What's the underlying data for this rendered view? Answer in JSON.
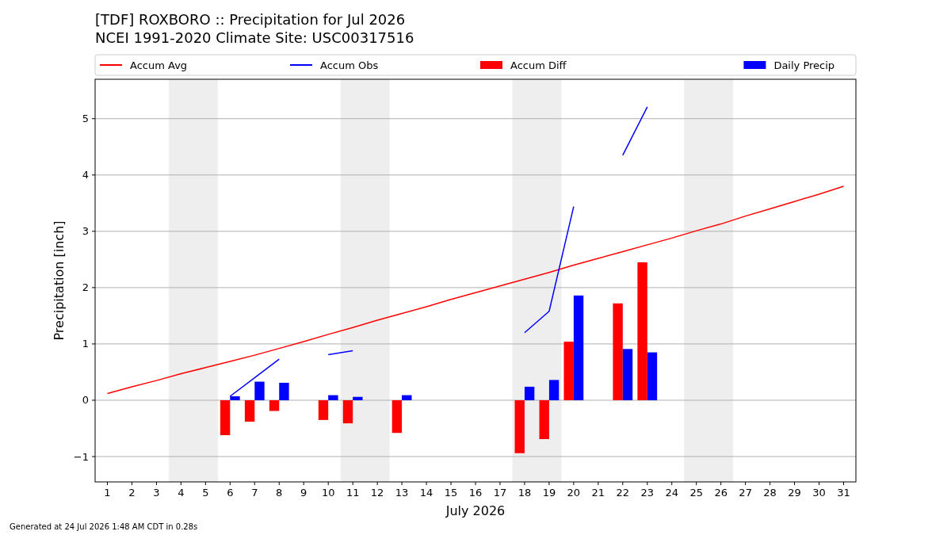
{
  "chart_data": {
    "type": "bar",
    "title": "[TDF] ROXBORO :: Precipitation for Jul 2026",
    "subtitle": "NCEI 1991-2020 Climate Site: USC00317516",
    "xlabel": "July 2026",
    "ylabel": "Precipitation [inch]",
    "x": [
      1,
      2,
      3,
      4,
      5,
      6,
      7,
      8,
      9,
      10,
      11,
      12,
      13,
      14,
      15,
      16,
      17,
      18,
      19,
      20,
      21,
      22,
      23,
      24,
      25,
      26,
      27,
      28,
      29,
      30,
      31
    ],
    "series": [
      {
        "name": "Accum Avg",
        "type": "line",
        "color": "#ff0000",
        "values": [
          0.12,
          0.24,
          0.35,
          0.47,
          0.58,
          0.69,
          0.8,
          0.92,
          1.04,
          1.17,
          1.29,
          1.42,
          1.54,
          1.66,
          1.79,
          1.91,
          2.03,
          2.15,
          2.27,
          2.4,
          2.52,
          2.64,
          2.76,
          2.88,
          3.01,
          3.13,
          3.27,
          3.4,
          3.53,
          3.66,
          3.8
        ]
      },
      {
        "name": "Accum Obs",
        "type": "line",
        "color": "#0000ff",
        "values": [
          null,
          null,
          null,
          null,
          null,
          0.07,
          0.4,
          0.73,
          null,
          0.81,
          0.88,
          null,
          null,
          null,
          null,
          null,
          null,
          1.2,
          1.58,
          3.44,
          null,
          4.35,
          5.21,
          null,
          null,
          null,
          null,
          null,
          null,
          null,
          null
        ]
      },
      {
        "name": "Accum Diff",
        "color": "#ff0000",
        "values": [
          null,
          null,
          null,
          null,
          null,
          -0.62,
          -0.38,
          -0.19,
          null,
          -0.35,
          -0.41,
          null,
          -0.58,
          null,
          null,
          null,
          null,
          -0.94,
          -0.69,
          1.04,
          null,
          1.72,
          2.45,
          null,
          null,
          null,
          null,
          null,
          null,
          null,
          null
        ]
      },
      {
        "name": "Daily Precip",
        "color": "#0000ff",
        "values": [
          null,
          null,
          null,
          null,
          null,
          0.07,
          0.33,
          0.31,
          null,
          0.09,
          0.06,
          null,
          0.09,
          null,
          null,
          null,
          null,
          0.24,
          0.36,
          1.86,
          null,
          0.91,
          0.85,
          null,
          null,
          null,
          null,
          null,
          null,
          null,
          null
        ]
      }
    ],
    "bands": [
      {
        "axis": "x",
        "from": 3.5,
        "to": 5.5,
        "color": "#eeeeee"
      },
      {
        "axis": "x",
        "from": 10.5,
        "to": 12.5,
        "color": "#eeeeee"
      },
      {
        "axis": "x",
        "from": 17.5,
        "to": 19.5,
        "color": "#eeeeee"
      },
      {
        "axis": "x",
        "from": 24.5,
        "to": 26.5,
        "color": "#eeeeee"
      }
    ],
    "xlim": [
      0.5,
      31.5
    ],
    "xticks": [
      1,
      2,
      3,
      4,
      5,
      6,
      7,
      8,
      9,
      10,
      11,
      12,
      13,
      14,
      15,
      16,
      17,
      18,
      19,
      20,
      21,
      22,
      23,
      24,
      25,
      26,
      27,
      28,
      29,
      30,
      31
    ],
    "ylim": [
      -1.45,
      5.7
    ],
    "yticks": [
      {
        "value": -1,
        "label": "−1"
      },
      0,
      1,
      2,
      3,
      4,
      5
    ],
    "grid": "y",
    "legend": "top",
    "annotations": [
      "Generated at 24 Jul 2026 1:48 AM CDT in 0.28s"
    ]
  }
}
